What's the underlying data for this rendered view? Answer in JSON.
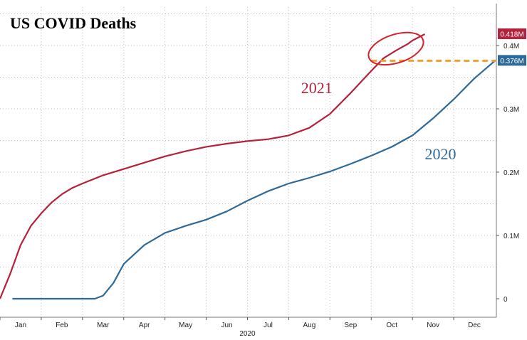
{
  "chart_data": {
    "type": "line",
    "title": "US COVID Deaths",
    "xlabel": "2020",
    "ylabel": "",
    "categories": [
      "Jan",
      "Feb",
      "Mar",
      "Apr",
      "May",
      "Jun",
      "Jul",
      "Aug",
      "Sep",
      "Oct",
      "Nov",
      "Dec"
    ],
    "x_unit": "month (1 = Jan 1, 13 = Dec 31)",
    "xlim": [
      1,
      13
    ],
    "ylim": [
      0,
      0.45
    ],
    "y_ticks": [
      {
        "value": 0,
        "label": "0"
      },
      {
        "value": 0.1,
        "label": "0.1M"
      },
      {
        "value": 0.2,
        "label": "0.2M"
      },
      {
        "value": 0.3,
        "label": "0.3M"
      },
      {
        "value": 0.4,
        "label": "0.4M"
      }
    ],
    "grid": true,
    "series": [
      {
        "name": "2021",
        "color": "#b5213a",
        "x": [
          1.0,
          1.25,
          1.5,
          1.75,
          2.0,
          2.25,
          2.5,
          2.75,
          3.0,
          3.5,
          4.0,
          4.5,
          5.0,
          5.5,
          6.0,
          6.5,
          7.0,
          7.5,
          8.0,
          8.5,
          9.0,
          9.5,
          10.0,
          10.3,
          10.6,
          10.9,
          11.0,
          11.3
        ],
        "values": [
          0.0,
          0.04,
          0.085,
          0.115,
          0.135,
          0.152,
          0.165,
          0.175,
          0.182,
          0.195,
          0.205,
          0.215,
          0.225,
          0.233,
          0.24,
          0.245,
          0.249,
          0.252,
          0.258,
          0.27,
          0.292,
          0.325,
          0.36,
          0.38,
          0.392,
          0.403,
          0.408,
          0.418
        ]
      },
      {
        "name": "2020",
        "color": "#2e6a99",
        "x": [
          1.3,
          1.6,
          2.0,
          2.5,
          3.0,
          3.3,
          3.5,
          3.75,
          4.0,
          4.5,
          5.0,
          5.5,
          6.0,
          6.5,
          7.0,
          7.5,
          8.0,
          8.5,
          9.0,
          9.5,
          10.0,
          10.5,
          11.0,
          11.5,
          12.0,
          12.5,
          13.0
        ],
        "values": [
          0.0,
          0.0,
          0.0,
          0.0,
          0.0,
          0.0,
          0.005,
          0.025,
          0.055,
          0.085,
          0.104,
          0.115,
          0.125,
          0.138,
          0.155,
          0.17,
          0.182,
          0.191,
          0.201,
          0.213,
          0.226,
          0.24,
          0.258,
          0.285,
          0.315,
          0.348,
          0.376
        ]
      }
    ],
    "badges": [
      {
        "label": "0.418M",
        "value": 0.418,
        "color": "#b5213a"
      },
      {
        "label": "0.376M",
        "value": 0.376,
        "color": "#2e6a99"
      }
    ],
    "annotations": {
      "reference_line": {
        "value": 0.376,
        "from_x": 10.0,
        "color": "#f0a030",
        "style": "dashed"
      },
      "highlight_ellipse": {
        "x_center": 10.6,
        "y_center": 0.395,
        "color": "#d81f2a"
      }
    },
    "series_label_anchor": [
      {
        "text": "2021",
        "x": 8.3,
        "y": 0.325
      },
      {
        "text": "2020",
        "x": 11.3,
        "y": 0.22
      }
    ]
  }
}
